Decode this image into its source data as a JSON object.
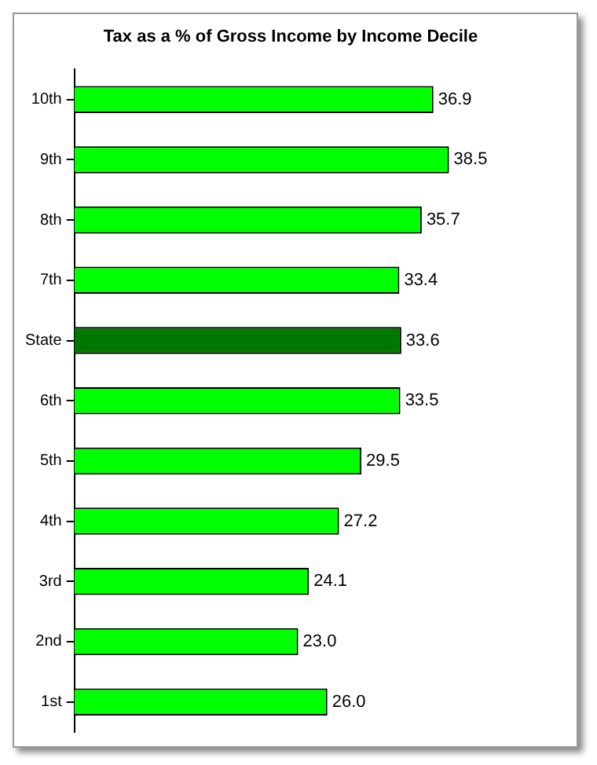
{
  "chart_data": {
    "type": "bar",
    "orientation": "horizontal",
    "title": "Tax as a % of Gross Income by Income Decile",
    "categories": [
      "10th",
      "9th",
      "8th",
      "7th",
      "State",
      "6th",
      "5th",
      "4th",
      "3rd",
      "2nd",
      "1st"
    ],
    "values": [
      36.9,
      38.5,
      35.7,
      33.4,
      33.6,
      33.5,
      29.5,
      27.2,
      24.1,
      23.0,
      26.0
    ],
    "value_labels": [
      "36.9",
      "38.5",
      "35.7",
      "33.4",
      "33.6",
      "33.5",
      "29.5",
      "27.2",
      "24.1",
      "23.0",
      "26.0"
    ],
    "colors": [
      "#00ff00",
      "#00ff00",
      "#00ff00",
      "#00ff00",
      "#007800",
      "#00ff00",
      "#00ff00",
      "#00ff00",
      "#00ff00",
      "#00ff00",
      "#00ff00"
    ],
    "tick_labels": "y",
    "grid": false,
    "legend": false
  }
}
